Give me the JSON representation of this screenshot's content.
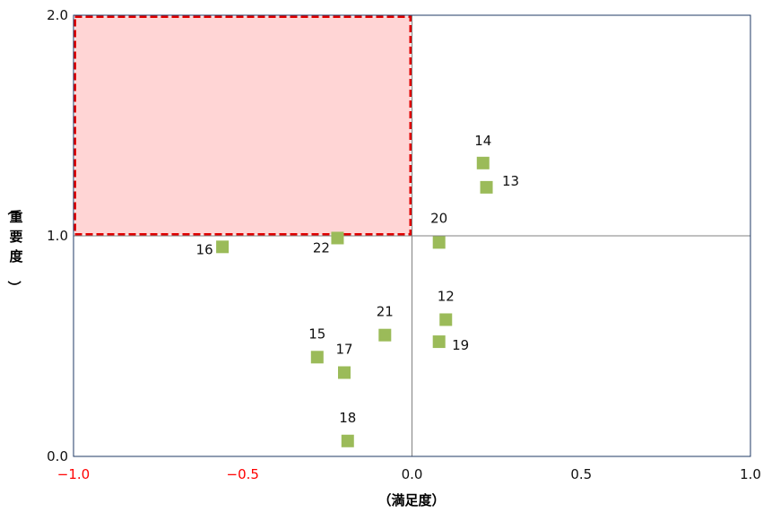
{
  "chart_data": {
    "type": "scatter",
    "xlabel": "（満足度）",
    "ylabel": "（重要度）",
    "xlim": [
      -1.0,
      1.0
    ],
    "ylim": [
      0.0,
      2.0
    ],
    "x_ticks": [
      "−1.0",
      "−0.5",
      "0.0",
      "0.5",
      "1.0"
    ],
    "y_ticks": [
      "0.0",
      "1.0",
      "2.0"
    ],
    "x_tick_values": [
      -1.0,
      -0.5,
      0.0,
      0.5,
      1.0
    ],
    "y_tick_values": [
      0.0,
      1.0,
      2.0
    ],
    "negative_x_tick_color": "#ff0000",
    "marker_color": "#9bbb59",
    "reference_lines": {
      "x": 0.0,
      "y": 1.0
    },
    "highlight_region": {
      "x": [
        -1.0,
        0.0
      ],
      "y": [
        1.0,
        2.0
      ],
      "fill": "#ffd5d5",
      "stroke": "#e00000"
    },
    "points": [
      {
        "label": "14",
        "x": 0.21,
        "y": 1.33
      },
      {
        "label": "13",
        "x": 0.22,
        "y": 1.22
      },
      {
        "label": "20",
        "x": 0.08,
        "y": 0.97
      },
      {
        "label": "16",
        "x": -0.56,
        "y": 0.95
      },
      {
        "label": "22",
        "x": -0.22,
        "y": 0.99
      },
      {
        "label": "12",
        "x": 0.1,
        "y": 0.62
      },
      {
        "label": "21",
        "x": -0.08,
        "y": 0.55
      },
      {
        "label": "19",
        "x": 0.08,
        "y": 0.52
      },
      {
        "label": "15",
        "x": -0.28,
        "y": 0.45
      },
      {
        "label": "17",
        "x": -0.2,
        "y": 0.38
      },
      {
        "label": "18",
        "x": -0.19,
        "y": 0.07
      }
    ]
  }
}
